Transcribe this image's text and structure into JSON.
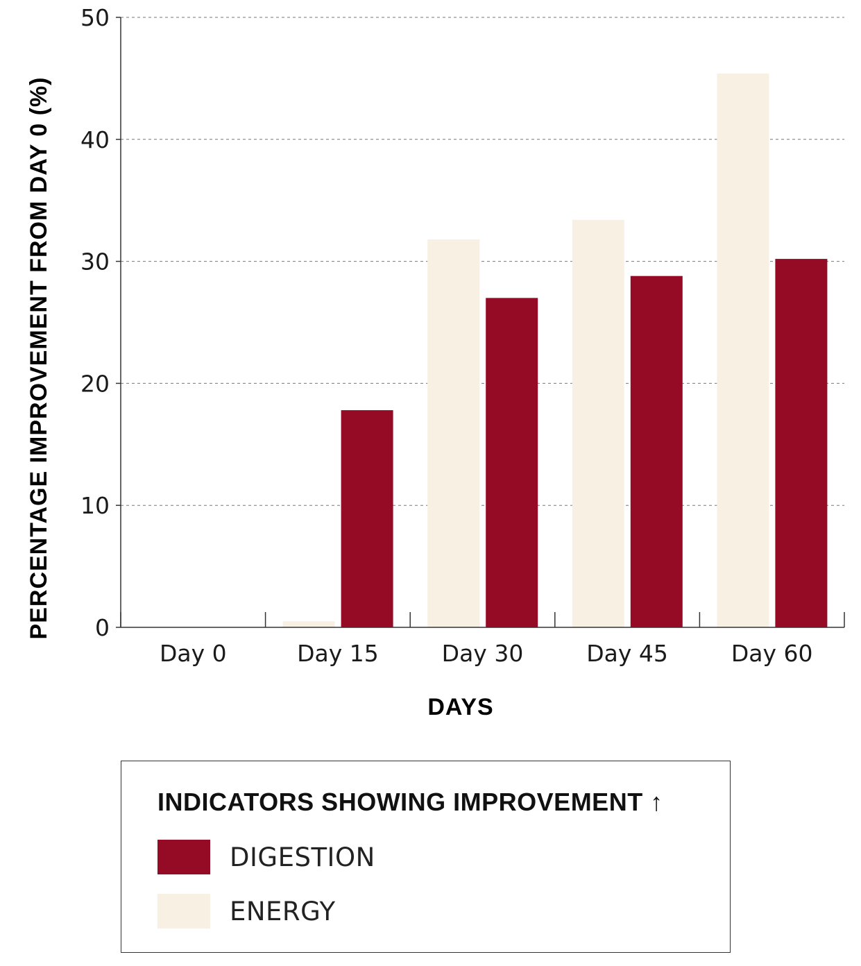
{
  "chart_data": {
    "type": "bar",
    "title": "",
    "xlabel": "DAYS",
    "ylabel": "PERCENTAGE IMPROVEMENT FROM DAY 0 (%)",
    "ylim": [
      0,
      50
    ],
    "yticks": [
      0,
      10,
      20,
      30,
      40,
      50
    ],
    "grid": true,
    "categories": [
      "Day 0",
      "Day 15",
      "Day 30",
      "Day 45",
      "Day 60"
    ],
    "series": [
      {
        "name": "ENERGY",
        "color": "#f8f0e2",
        "values": [
          0,
          0.5,
          31.8,
          33.4,
          45.4
        ]
      },
      {
        "name": "DIGESTION",
        "color": "#950a25",
        "values": [
          0,
          17.8,
          27.0,
          28.8,
          30.2
        ]
      }
    ]
  },
  "legend": {
    "title": "INDICATORS SHOWING IMPROVEMENT ↑",
    "items": [
      {
        "label": "DIGESTION",
        "color": "#950a25"
      },
      {
        "label": "ENERGY",
        "color": "#f8f0e2"
      }
    ]
  }
}
